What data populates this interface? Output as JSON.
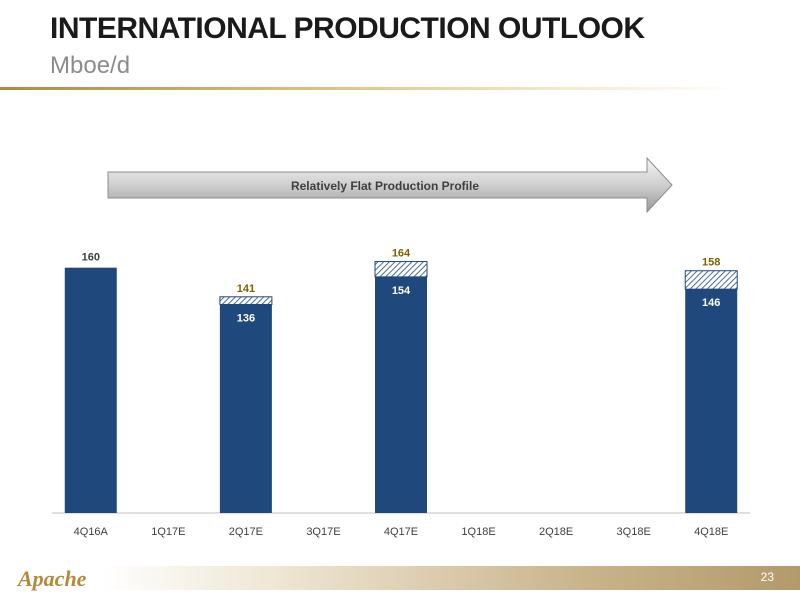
{
  "header": {
    "title": "INTERNATIONAL PRODUCTION OUTLOOK",
    "subtitle": "Mboe/d"
  },
  "banner": {
    "label": "Relatively Flat Production Profile"
  },
  "footer": {
    "page_number": "23",
    "logo_text": "Apache"
  },
  "colors": {
    "bar": "#1f497d",
    "increment_label": "#7f6000",
    "base_label": "#ffffff",
    "top_label": "#404040"
  },
  "chart_data": {
    "type": "bar",
    "stacked": true,
    "title": "",
    "xlabel": "",
    "ylabel": "",
    "categories": [
      "4Q16A",
      "1Q17E",
      "2Q17E",
      "3Q17E",
      "4Q17E",
      "1Q18E",
      "2Q18E",
      "3Q18E",
      "4Q18E"
    ],
    "series": [
      {
        "values": [
          160,
          null,
          136,
          null,
          154,
          null,
          null,
          null,
          146
        ]
      },
      {
        "values": [
          0,
          null,
          5,
          null,
          10,
          null,
          null,
          null,
          12
        ]
      }
    ],
    "totals": [
      160,
      null,
      141,
      null,
      164,
      null,
      null,
      null,
      158
    ],
    "ylim": [
      0,
      180
    ],
    "grid": false,
    "legend": "none"
  }
}
